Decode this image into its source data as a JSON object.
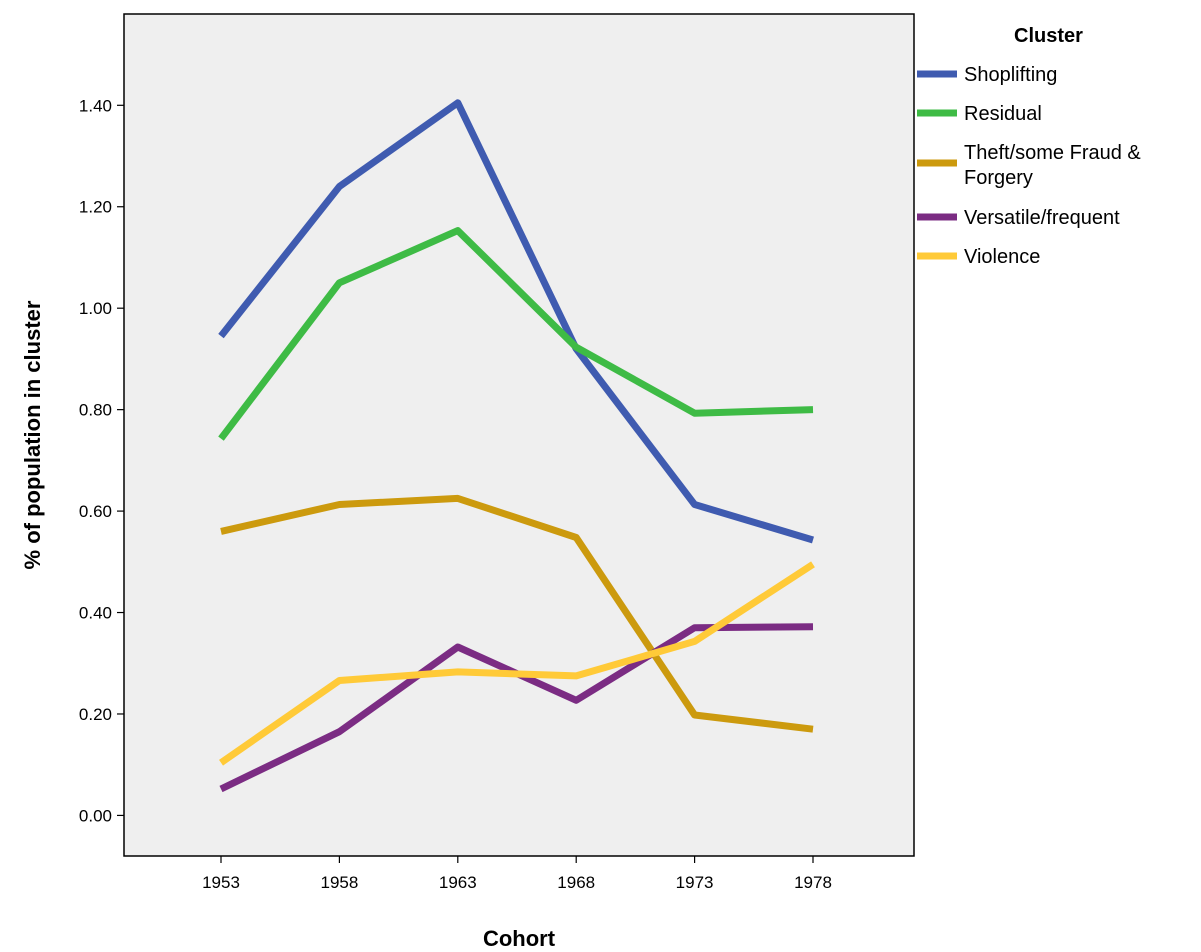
{
  "chart_data": {
    "type": "line",
    "title": "",
    "xlabel": "Cohort",
    "ylabel": "% of population in cluster",
    "categories": [
      "1953",
      "1958",
      "1963",
      "1968",
      "1973",
      "1978"
    ],
    "ylim": [
      -0.08,
      1.58
    ],
    "yticks": [
      "0.00",
      "0.20",
      "0.40",
      "0.60",
      "0.80",
      "1.00",
      "1.20",
      "1.40"
    ],
    "grid": false,
    "legend_title": "Cluster",
    "legend_position": "right",
    "background": "#efefef",
    "series": [
      {
        "name": "Shoplifting",
        "color": "#3f5bb0",
        "values": [
          0.945,
          1.24,
          1.405,
          0.92,
          0.613,
          0.543
        ]
      },
      {
        "name": "Residual",
        "color": "#3ebb45",
        "values": [
          0.743,
          1.05,
          1.153,
          0.923,
          0.793,
          0.8
        ]
      },
      {
        "name": "Theft/some Fraud & Forgery",
        "color": "#cc9a0e",
        "values": [
          0.56,
          0.613,
          0.625,
          0.548,
          0.198,
          0.17
        ]
      },
      {
        "name": "Versatile/frequent",
        "color": "#7b2c83",
        "values": [
          0.052,
          0.165,
          0.332,
          0.227,
          0.37,
          0.372
        ]
      },
      {
        "name": "Violence",
        "color": "#ffca38",
        "values": [
          0.104,
          0.266,
          0.283,
          0.275,
          0.343,
          0.495
        ]
      }
    ]
  }
}
